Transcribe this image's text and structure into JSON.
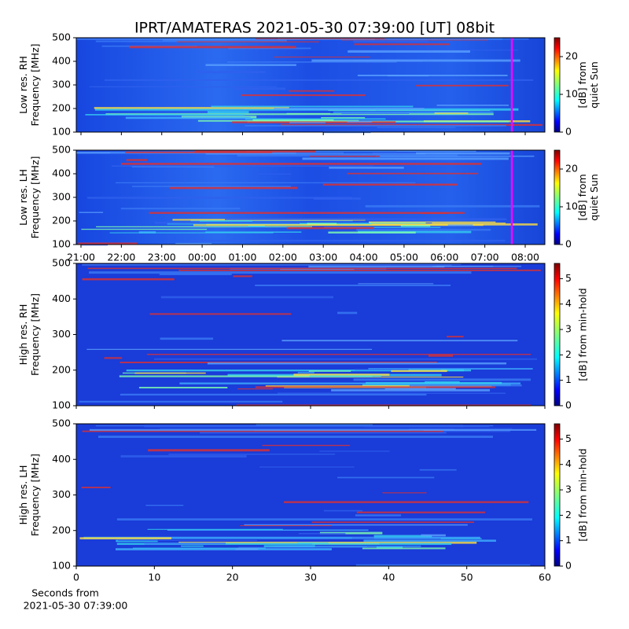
{
  "title": "IPRT/AMATERAS 2021-05-30 07:39:00 [UT]   08bit",
  "chart_data": [
    {
      "type": "heatmap",
      "ylabel": [
        "Low res. RH",
        "Frequency [MHz]"
      ],
      "ylim": [
        100,
        500
      ],
      "yticks": [
        100,
        200,
        300,
        400,
        500
      ],
      "colorbar_label": [
        "[dB] from",
        "quiet Sun"
      ],
      "clim": [
        0,
        25
      ],
      "cticks": [
        0,
        10,
        20
      ],
      "colormap": "jet"
    },
    {
      "type": "heatmap",
      "ylabel": [
        "Low res. LH",
        "Frequency [MHz]"
      ],
      "ylim": [
        100,
        500
      ],
      "yticks": [
        100,
        200,
        300,
        400,
        500
      ],
      "colorbar_label": [
        "[dB] from",
        "quiet Sun"
      ],
      "clim": [
        0,
        25
      ],
      "cticks": [
        0,
        10,
        20
      ],
      "colormap": "jet",
      "xtick_labels": [
        "21:00",
        "22:00",
        "23:00",
        "00:00",
        "01:00",
        "02:00",
        "03:00",
        "04:00",
        "05:00",
        "06:00",
        "07:00",
        "08:00"
      ]
    },
    {
      "type": "heatmap",
      "ylabel": [
        "High res. RH",
        "Frequency [MHz]"
      ],
      "ylim": [
        100,
        500
      ],
      "yticks": [
        100,
        200,
        300,
        400,
        500
      ],
      "colorbar_label": [
        "[dB] from min-hold"
      ],
      "clim": [
        0,
        5.6
      ],
      "cticks": [
        0,
        1,
        2,
        3,
        4,
        5
      ],
      "colormap": "jet"
    },
    {
      "type": "heatmap",
      "ylabel": [
        "High res. LH",
        "Frequency [MHz]"
      ],
      "ylim": [
        100,
        500
      ],
      "yticks": [
        100,
        200,
        300,
        400,
        500
      ],
      "colorbar_label": [
        "[dB] from min-hold"
      ],
      "clim": [
        0,
        5.6
      ],
      "cticks": [
        0,
        1,
        2,
        3,
        4,
        5
      ],
      "colormap": "jet",
      "xlim": [
        0,
        60
      ],
      "xticks": [
        0,
        10,
        20,
        30,
        40,
        50,
        60
      ],
      "xlabel": [
        "Seconds from",
        "2021-05-30 07:39:00"
      ]
    }
  ]
}
